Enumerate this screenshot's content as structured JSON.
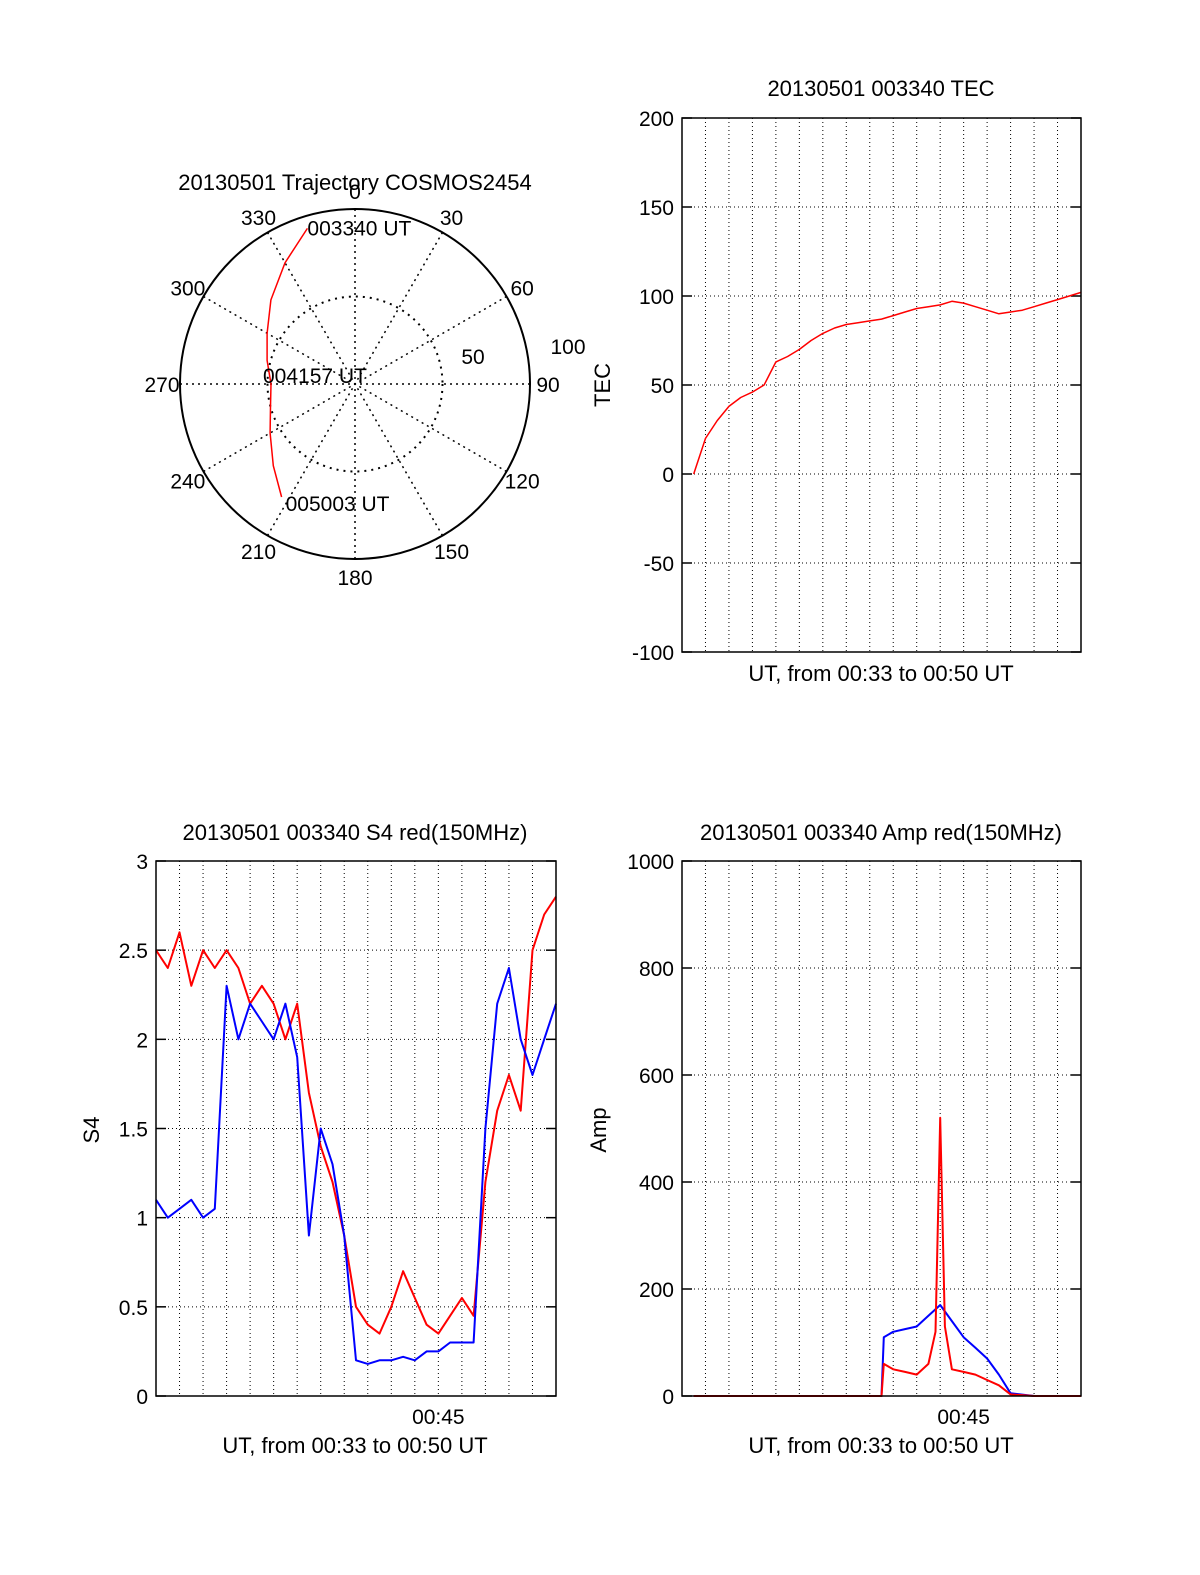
{
  "chart_data": [
    {
      "type": "polar-trajectory",
      "title": "20130501 Trajectory COSMOS2454",
      "angle_labels": [
        "0",
        "30",
        "60",
        "90",
        "120",
        "150",
        "180",
        "210",
        "240",
        "270",
        "300",
        "330"
      ],
      "radial_labels": [
        "50",
        "100"
      ],
      "radius_max": 100,
      "trajectory": {
        "color": "#ff0000",
        "points": [
          [
            343,
            93
          ],
          [
            330,
            80
          ],
          [
            315,
            68
          ],
          [
            300,
            58
          ],
          [
            285,
            52
          ],
          [
            270,
            48
          ],
          [
            255,
            50
          ],
          [
            240,
            56
          ],
          [
            225,
            66
          ],
          [
            213,
            77
          ]
        ]
      },
      "annotations": [
        {
          "text": "003340 UT",
          "angle": 343,
          "radius": 93
        },
        {
          "text": "004157 UT",
          "angle": 270,
          "radius": 0
        },
        {
          "text": "005003 UT",
          "angle": 213,
          "radius": 77
        }
      ]
    },
    {
      "type": "line",
      "title": "20130501 003340 TEC",
      "xlabel": "UT, from 00:33 to 00:50 UT",
      "ylabel": "TEC",
      "xlim": [
        0,
        17
      ],
      "ylim": [
        -100,
        200
      ],
      "yticks": [
        "-100",
        "-50",
        "0",
        "50",
        "100",
        "150",
        "200"
      ],
      "grid": true,
      "series": [
        {
          "color": "#ff0000",
          "x": [
            0.5,
            1,
            1.5,
            2,
            2.5,
            3,
            3.5,
            4,
            4.5,
            5,
            5.5,
            6,
            6.5,
            7,
            7.5,
            8,
            8.5,
            9,
            9.5,
            10,
            10.5,
            11,
            11.5,
            12,
            12.5,
            13,
            13.5,
            14,
            14.5,
            15,
            15.5,
            16,
            16.5,
            17
          ],
          "values": [
            0,
            20,
            30,
            38,
            43,
            46,
            50,
            63,
            66,
            70,
            75,
            79,
            82,
            84,
            85,
            86,
            87,
            89,
            91,
            93,
            94,
            95,
            97,
            96,
            94,
            92,
            90,
            91,
            92,
            94,
            96,
            98,
            100,
            102
          ]
        }
      ]
    },
    {
      "type": "line",
      "title": "20130501 003340 S4 red(150MHz)",
      "xlabel": "UT, from 00:33 to 00:50 UT",
      "ylabel": "S4",
      "xlim": [
        0,
        17
      ],
      "ylim": [
        0,
        3
      ],
      "yticks": [
        "0",
        "0.5",
        "1",
        "1.5",
        "2",
        "2.5",
        "3"
      ],
      "xticks": [
        "00:45"
      ],
      "grid": true,
      "series": [
        {
          "color": "#ff0000",
          "x": [
            0,
            0.5,
            1,
            1.5,
            2,
            2.5,
            3,
            3.5,
            4,
            4.5,
            5,
            5.5,
            6,
            6.5,
            7,
            7.5,
            8,
            8.5,
            9,
            9.5,
            10,
            10.5,
            11,
            11.5,
            12,
            12.5,
            13,
            13.5,
            14,
            14.5,
            15,
            15.5,
            16,
            16.5,
            17
          ],
          "values": [
            2.5,
            2.4,
            2.6,
            2.3,
            2.5,
            2.4,
            2.5,
            2.4,
            2.2,
            2.3,
            2.2,
            2.0,
            2.2,
            1.7,
            1.4,
            1.2,
            0.9,
            0.5,
            0.4,
            0.35,
            0.5,
            0.7,
            0.55,
            0.4,
            0.35,
            0.45,
            0.55,
            0.45,
            1.2,
            1.6,
            1.8,
            1.6,
            2.5,
            2.7,
            2.8
          ]
        },
        {
          "color": "#0000ff",
          "x": [
            0,
            0.5,
            1,
            1.5,
            2,
            2.5,
            3,
            3.5,
            4,
            4.5,
            5,
            5.5,
            6,
            6.5,
            7,
            7.5,
            8,
            8.5,
            9,
            9.5,
            10,
            10.5,
            11,
            11.5,
            12,
            12.5,
            13,
            13.5,
            14,
            14.5,
            15,
            15.5,
            16,
            16.5,
            17
          ],
          "values": [
            1.1,
            1.0,
            1.05,
            1.1,
            1.0,
            1.05,
            2.3,
            2.0,
            2.2,
            2.1,
            2.0,
            2.2,
            1.9,
            0.9,
            1.5,
            1.3,
            0.9,
            0.2,
            0.18,
            0.2,
            0.2,
            0.22,
            0.2,
            0.25,
            0.25,
            0.3,
            0.3,
            0.3,
            1.5,
            2.2,
            2.4,
            2.0,
            1.8,
            2.0,
            2.2
          ]
        }
      ]
    },
    {
      "type": "line",
      "title": "20130501 003340 Amp red(150MHz)",
      "xlabel": "UT, from 00:33 to 00:50 UT",
      "ylabel": "Amp",
      "xlim": [
        0,
        17
      ],
      "ylim": [
        0,
        1000
      ],
      "yticks": [
        "0",
        "200",
        "400",
        "600",
        "800",
        "1000"
      ],
      "xticks": [
        "00:45"
      ],
      "grid": true,
      "series": [
        {
          "color": "#0000ff",
          "x": [
            0.5,
            1,
            2,
            3,
            4,
            5,
            6,
            7,
            8,
            8.5,
            8.6,
            9,
            9.5,
            10,
            10.5,
            11,
            11.5,
            12,
            12.5,
            13,
            13.5,
            14,
            15,
            16,
            17
          ],
          "values": [
            0,
            0,
            0,
            0,
            0,
            0,
            0,
            0,
            0,
            0,
            110,
            120,
            125,
            130,
            150,
            170,
            140,
            110,
            90,
            70,
            40,
            5,
            0,
            0,
            0
          ]
        },
        {
          "color": "#ff0000",
          "x": [
            0.5,
            1,
            2,
            3,
            4,
            5,
            6,
            7,
            8,
            8.5,
            8.6,
            9,
            9.5,
            10,
            10.5,
            10.8,
            11,
            11.2,
            11.5,
            12,
            12.5,
            13,
            13.5,
            14,
            15,
            16,
            17
          ],
          "values": [
            0,
            0,
            0,
            0,
            0,
            0,
            0,
            0,
            0,
            0,
            60,
            50,
            45,
            40,
            60,
            120,
            520,
            130,
            50,
            45,
            40,
            30,
            20,
            3,
            0,
            0,
            0
          ]
        }
      ]
    }
  ]
}
